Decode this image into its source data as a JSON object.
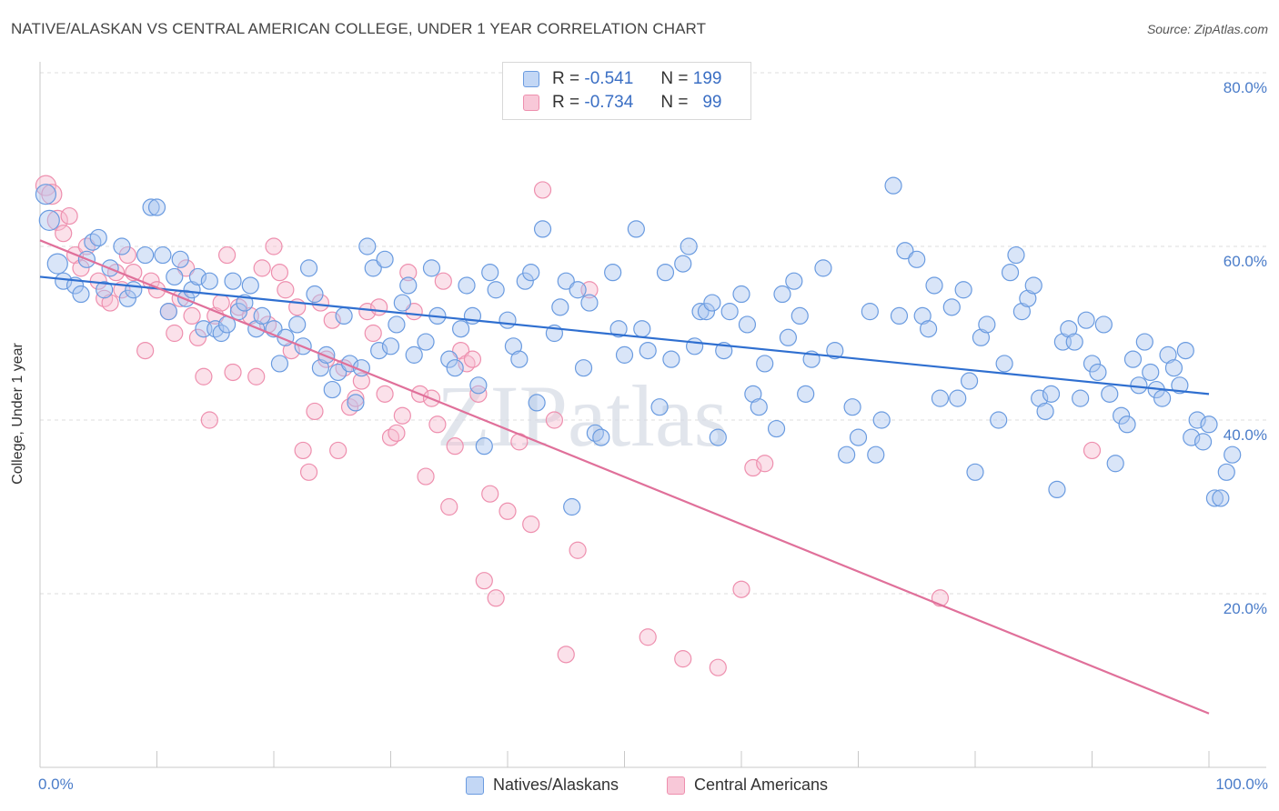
{
  "title": "NATIVE/ALASKAN VS CENTRAL AMERICAN COLLEGE, UNDER 1 YEAR CORRELATION CHART",
  "source": "Source: ZipAtlas.com",
  "watermark": "ZIPatlas",
  "colors": {
    "blue": "#6a9be0",
    "pink": "#ee8fae",
    "blue_line": "#2f6fd0",
    "pink_line": "#e0709a"
  },
  "legend": {
    "rows": [
      {
        "r_label": "R =",
        "r_value": "-0.541",
        "n_label": "N =",
        "n_value": "199"
      },
      {
        "r_label": "R =",
        "r_value": "-0.734",
        "n_label": "N =",
        "n_value": "99"
      }
    ]
  },
  "chart_data": {
    "type": "scatter",
    "title": "NATIVE/ALASKAN VS CENTRAL AMERICAN COLLEGE, UNDER 1 YEAR CORRELATION CHART",
    "xlabel": "",
    "ylabel": "College, Under 1 year",
    "xlim": [
      0,
      100
    ],
    "ylim": [
      0,
      80
    ],
    "y_ticks": [
      "80.0%",
      "60.0%",
      "40.0%",
      "20.0%"
    ],
    "y_tick_values": [
      80,
      60,
      40,
      20
    ],
    "x_tick_labels": [
      "0.0%",
      "100.0%"
    ],
    "grid": "horizontal dashed",
    "legend_position": "top-center",
    "series": [
      {
        "name": "Natives/Alaskans",
        "R": -0.541,
        "N": 199,
        "trend": {
          "x": [
            0,
            100
          ],
          "y": [
            56.5,
            43.0
          ]
        },
        "points": [
          [
            0.5,
            66
          ],
          [
            0.8,
            63
          ],
          [
            1.5,
            58
          ],
          [
            2,
            56
          ],
          [
            3,
            55.5
          ],
          [
            3.5,
            54.5
          ],
          [
            4,
            58.5
          ],
          [
            4.5,
            60.5
          ],
          [
            5,
            61
          ],
          [
            5.5,
            55
          ],
          [
            6,
            57.5
          ],
          [
            7,
            60
          ],
          [
            7.5,
            54
          ],
          [
            8,
            55
          ],
          [
            9,
            59
          ],
          [
            9.5,
            64.5
          ],
          [
            10,
            64.5
          ],
          [
            10.5,
            59
          ],
          [
            11,
            52.5
          ],
          [
            11.5,
            56.5
          ],
          [
            12,
            58.5
          ],
          [
            12.5,
            54
          ],
          [
            13,
            55
          ],
          [
            13.5,
            56.5
          ],
          [
            14,
            50.5
          ],
          [
            14.5,
            56
          ],
          [
            15,
            50.5
          ],
          [
            15.5,
            50
          ],
          [
            16,
            51
          ],
          [
            16.5,
            56
          ],
          [
            17,
            52.5
          ],
          [
            17.5,
            53.5
          ],
          [
            18,
            55.5
          ],
          [
            18.5,
            50.5
          ],
          [
            19,
            52
          ],
          [
            20,
            50.5
          ],
          [
            20.5,
            46.5
          ],
          [
            21,
            49.5
          ],
          [
            22,
            51
          ],
          [
            22.5,
            48.5
          ],
          [
            23,
            57.5
          ],
          [
            23.5,
            54.5
          ],
          [
            24,
            46
          ],
          [
            24.5,
            47.5
          ],
          [
            25,
            43.5
          ],
          [
            25.5,
            45.5
          ],
          [
            26,
            52
          ],
          [
            26.5,
            46.5
          ],
          [
            27,
            42
          ],
          [
            27.5,
            46
          ],
          [
            28,
            60
          ],
          [
            28.5,
            57.5
          ],
          [
            29,
            48
          ],
          [
            29.5,
            58.5
          ],
          [
            30,
            48.5
          ],
          [
            30.5,
            51
          ],
          [
            31,
            53.5
          ],
          [
            31.5,
            55.5
          ],
          [
            32,
            47.5
          ],
          [
            33,
            49
          ],
          [
            33.5,
            57.5
          ],
          [
            34,
            52
          ],
          [
            35,
            47
          ],
          [
            35.5,
            46
          ],
          [
            36,
            50.5
          ],
          [
            36.5,
            55.5
          ],
          [
            37,
            52
          ],
          [
            37.5,
            44
          ],
          [
            38,
            37
          ],
          [
            38.5,
            57
          ],
          [
            39,
            55
          ],
          [
            40,
            51.5
          ],
          [
            40.5,
            48.5
          ],
          [
            41,
            47
          ],
          [
            41.5,
            56
          ],
          [
            42,
            57
          ],
          [
            42.5,
            42
          ],
          [
            43,
            62
          ],
          [
            44,
            50
          ],
          [
            44.5,
            53
          ],
          [
            45,
            56
          ],
          [
            45.5,
            30
          ],
          [
            46,
            55
          ],
          [
            46.5,
            46
          ],
          [
            47,
            53.5
          ],
          [
            47.5,
            38.5
          ],
          [
            48,
            38
          ],
          [
            49,
            57
          ],
          [
            49.5,
            50.5
          ],
          [
            50,
            47.5
          ],
          [
            51,
            62
          ],
          [
            51.5,
            50.5
          ],
          [
            52,
            48
          ],
          [
            53,
            41.5
          ],
          [
            53.5,
            57
          ],
          [
            54,
            47
          ],
          [
            55,
            58
          ],
          [
            55.5,
            60
          ],
          [
            56,
            48.5
          ],
          [
            56.5,
            52.5
          ],
          [
            57,
            52.5
          ],
          [
            57.5,
            53.5
          ],
          [
            58,
            38
          ],
          [
            58.5,
            48
          ],
          [
            59,
            52.5
          ],
          [
            60,
            54.5
          ],
          [
            60.5,
            51
          ],
          [
            61,
            43
          ],
          [
            61.5,
            41.5
          ],
          [
            62,
            46.5
          ],
          [
            63,
            39
          ],
          [
            63.5,
            54.5
          ],
          [
            64,
            49.5
          ],
          [
            64.5,
            56
          ],
          [
            65,
            52
          ],
          [
            65.5,
            43
          ],
          [
            66,
            47
          ],
          [
            67,
            57.5
          ],
          [
            68,
            48
          ],
          [
            69,
            36
          ],
          [
            69.5,
            41.5
          ],
          [
            70,
            38
          ],
          [
            71,
            52.5
          ],
          [
            71.5,
            36
          ],
          [
            72,
            40
          ],
          [
            73,
            67
          ],
          [
            73.5,
            52
          ],
          [
            74,
            59.5
          ],
          [
            75,
            58.5
          ],
          [
            75.5,
            52
          ],
          [
            76,
            50.5
          ],
          [
            76.5,
            55.5
          ],
          [
            77,
            42.5
          ],
          [
            78,
            53
          ],
          [
            78.5,
            42.5
          ],
          [
            79,
            55
          ],
          [
            79.5,
            44.5
          ],
          [
            80,
            34
          ],
          [
            80.5,
            49.5
          ],
          [
            81,
            51
          ],
          [
            82,
            40
          ],
          [
            82.5,
            46.5
          ],
          [
            83,
            57
          ],
          [
            83.5,
            59
          ],
          [
            84,
            52.5
          ],
          [
            84.5,
            54
          ],
          [
            85,
            55.5
          ],
          [
            85.5,
            42.5
          ],
          [
            86,
            41
          ],
          [
            86.5,
            43
          ],
          [
            87,
            32
          ],
          [
            87.5,
            49
          ],
          [
            88,
            50.5
          ],
          [
            88.5,
            49
          ],
          [
            89,
            42.5
          ],
          [
            89.5,
            51.5
          ],
          [
            90,
            46.5
          ],
          [
            90.5,
            45.5
          ],
          [
            91,
            51
          ],
          [
            91.5,
            43
          ],
          [
            92,
            35
          ],
          [
            92.5,
            40.5
          ],
          [
            93,
            39.5
          ],
          [
            93.5,
            47
          ],
          [
            94,
            44
          ],
          [
            94.5,
            49
          ],
          [
            95,
            45.5
          ],
          [
            95.5,
            43.5
          ],
          [
            96,
            42.5
          ],
          [
            96.5,
            47.5
          ],
          [
            97,
            46
          ],
          [
            97.5,
            44
          ],
          [
            98,
            48
          ],
          [
            98.5,
            38
          ],
          [
            99,
            40
          ],
          [
            99.5,
            37.5
          ],
          [
            100,
            39.5
          ],
          [
            100.5,
            31
          ],
          [
            101,
            31
          ],
          [
            101.5,
            34
          ],
          [
            102,
            36
          ]
        ]
      },
      {
        "name": "Central Americans",
        "R": -0.734,
        "N": 99,
        "trend": {
          "x": [
            0,
            100
          ],
          "y": [
            60.7,
            6.2
          ]
        },
        "points": [
          [
            0.5,
            67
          ],
          [
            1,
            66
          ],
          [
            1.5,
            63
          ],
          [
            2,
            61.5
          ],
          [
            2.5,
            63.5
          ],
          [
            3,
            59
          ],
          [
            3.5,
            57.5
          ],
          [
            4,
            60
          ],
          [
            5,
            56
          ],
          [
            5.5,
            54
          ],
          [
            6,
            53.5
          ],
          [
            6.5,
            57
          ],
          [
            7,
            55
          ],
          [
            7.5,
            59
          ],
          [
            8,
            57
          ],
          [
            9,
            48
          ],
          [
            9.5,
            56
          ],
          [
            10,
            55
          ],
          [
            11,
            52.5
          ],
          [
            11.5,
            50
          ],
          [
            12,
            54
          ],
          [
            12.5,
            57.5
          ],
          [
            13,
            52
          ],
          [
            13.5,
            49.5
          ],
          [
            14,
            45
          ],
          [
            14.5,
            40
          ],
          [
            15,
            52
          ],
          [
            15.5,
            53.5
          ],
          [
            16,
            59
          ],
          [
            16.5,
            45.5
          ],
          [
            17,
            53
          ],
          [
            18,
            52
          ],
          [
            18.5,
            45
          ],
          [
            19,
            57.5
          ],
          [
            19.5,
            51
          ],
          [
            20,
            60
          ],
          [
            20.5,
            57
          ],
          [
            21,
            55
          ],
          [
            21.5,
            48
          ],
          [
            22,
            53
          ],
          [
            22.5,
            36.5
          ],
          [
            23,
            34
          ],
          [
            23.5,
            41
          ],
          [
            24,
            53.5
          ],
          [
            24.5,
            47
          ],
          [
            25,
            51.5
          ],
          [
            25.5,
            36.5
          ],
          [
            26,
            46
          ],
          [
            26.5,
            41.5
          ],
          [
            27,
            42.5
          ],
          [
            27.5,
            44.5
          ],
          [
            28,
            52.5
          ],
          [
            28.5,
            50
          ],
          [
            29,
            53
          ],
          [
            29.5,
            43
          ],
          [
            30,
            38
          ],
          [
            30.5,
            38.5
          ],
          [
            31,
            40.5
          ],
          [
            31.5,
            57
          ],
          [
            32,
            52.5
          ],
          [
            32.5,
            43
          ],
          [
            33,
            33.5
          ],
          [
            33.5,
            42.5
          ],
          [
            34,
            39.5
          ],
          [
            34.5,
            56
          ],
          [
            35,
            30
          ],
          [
            35.5,
            37
          ],
          [
            36,
            48
          ],
          [
            36.5,
            46.5
          ],
          [
            37,
            47
          ],
          [
            37.5,
            43
          ],
          [
            38,
            21.5
          ],
          [
            38.5,
            31.5
          ],
          [
            39,
            19.5
          ],
          [
            40,
            29.5
          ],
          [
            41,
            37.5
          ],
          [
            42,
            28
          ],
          [
            43,
            66.5
          ],
          [
            44,
            40
          ],
          [
            45,
            13
          ],
          [
            46,
            25
          ],
          [
            47,
            55
          ],
          [
            52,
            15
          ],
          [
            55,
            12.5
          ],
          [
            58,
            11.5
          ],
          [
            60,
            20.5
          ],
          [
            61,
            34.5
          ],
          [
            62,
            35
          ],
          [
            77,
            19.5
          ],
          [
            90,
            36.5
          ]
        ]
      }
    ]
  },
  "bottom_legend": {
    "items": [
      "Natives/Alaskans",
      "Central Americans"
    ]
  }
}
